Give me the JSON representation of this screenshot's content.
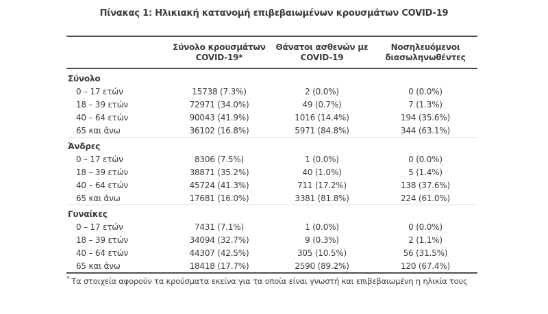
{
  "title": "Πίνακας 1: Ηλικιακή κατανομή επιβεβαιωμένων κρουσμάτων COVID-19",
  "colors": {
    "text": "#3b3b3b",
    "rule": "#4f4f4f",
    "light_separator": "#dcdcdc"
  },
  "table": {
    "headers": [
      {
        "line1": "Σύνολο κρουσμάτων",
        "line2": "COVID-19*"
      },
      {
        "line1": "Θάνατοι ασθενών με",
        "line2": "COVID-19"
      },
      {
        "line1": "Νοσηλευόμενοι",
        "line2": "διασωληνωθέντες"
      }
    ],
    "sections": [
      {
        "label": "Σύνολο",
        "rows": [
          {
            "label": "0 – 17 ετών",
            "cases": "15738 (7.3%)",
            "deaths": "2 (0.0%)",
            "intubated": "0 (0.0%)"
          },
          {
            "label": "18 – 39 ετών",
            "cases": "72971 (34.0%)",
            "deaths": "49 (0.7%)",
            "intubated": "7 (1.3%)"
          },
          {
            "label": "40 – 64 ετών",
            "cases": "90043 (41.9%)",
            "deaths": "1016 (14.4%)",
            "intubated": "194 (35.6%)"
          },
          {
            "label": "65 και άνω",
            "cases": "36102 (16.8%)",
            "deaths": "5971 (84.8%)",
            "intubated": "344 (63.1%)"
          }
        ]
      },
      {
        "label": "Άνδρες",
        "rows": [
          {
            "label": "0 – 17 ετών",
            "cases": "8306 (7.5%)",
            "deaths": "1 (0.0%)",
            "intubated": "0 (0.0%)"
          },
          {
            "label": "18 – 39 ετών",
            "cases": "38871 (35.2%)",
            "deaths": "40 (1.0%)",
            "intubated": "5 (1.4%)"
          },
          {
            "label": "40 – 64 ετών",
            "cases": "45724 (41.3%)",
            "deaths": "711 (17.2%)",
            "intubated": "138 (37.6%)"
          },
          {
            "label": "65 και άνω",
            "cases": "17681 (16.0%)",
            "deaths": "3381 (81.8%)",
            "intubated": "224 (61.0%)"
          }
        ]
      },
      {
        "label": "Γυναίκες",
        "rows": [
          {
            "label": "0 – 17 ετών",
            "cases": "7431 (7.1%)",
            "deaths": "1 (0.0%)",
            "intubated": "0 (0.0%)"
          },
          {
            "label": "18 – 39 ετών",
            "cases": "34094 (32.7%)",
            "deaths": "9 (0.3%)",
            "intubated": "2 (1.1%)"
          },
          {
            "label": "40 – 64 ετών",
            "cases": "44307 (42.5%)",
            "deaths": "305 (10.5%)",
            "intubated": "56 (31.5%)"
          },
          {
            "label": "65 και άνω",
            "cases": "18418 (17.7%)",
            "deaths": "2590 (89.2%)",
            "intubated": "120 (67.4%)"
          }
        ]
      }
    ],
    "footnote": {
      "marker": "*",
      "text": "Τα στοιχεία αφορούν τα κρούσματα εκείνα για τα οποία είναι γνωστή και επιβεβαιωμένη η ηλικία τους"
    }
  }
}
